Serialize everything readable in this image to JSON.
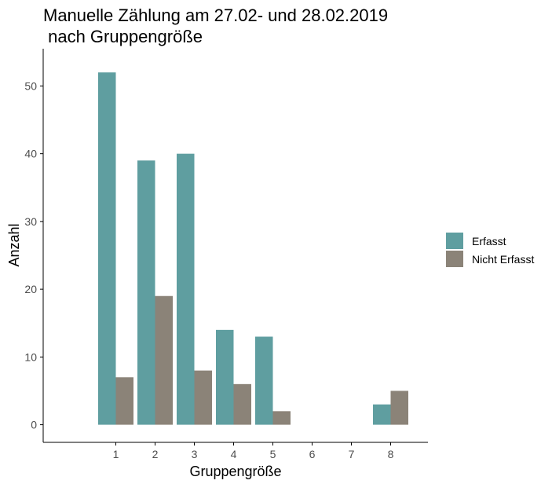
{
  "chart_data": {
    "type": "bar",
    "title_line1": "Manuelle Zählung am 27.02- und 28.02.2019",
    "title_line2": " nach Gruppengröße",
    "xlabel": "Gruppengröße",
    "ylabel": "Anzahl",
    "categories": [
      "1",
      "2",
      "3",
      "4",
      "5",
      "6",
      "7",
      "8"
    ],
    "x_range": [
      -0.85,
      8.95
    ],
    "ylim": [
      -2.6,
      55.5
    ],
    "y_ticks": [
      0,
      10,
      20,
      30,
      40,
      50
    ],
    "grid": false,
    "legend_position": "right",
    "series": [
      {
        "name": "Erfasst",
        "color": "#5f9ea0",
        "values": [
          52,
          39,
          40,
          14,
          13,
          0,
          0,
          3
        ]
      },
      {
        "name": "Nicht Erfasst",
        "color": "#8b8378",
        "values": [
          7,
          19,
          8,
          6,
          2,
          0,
          0,
          5
        ]
      }
    ]
  }
}
